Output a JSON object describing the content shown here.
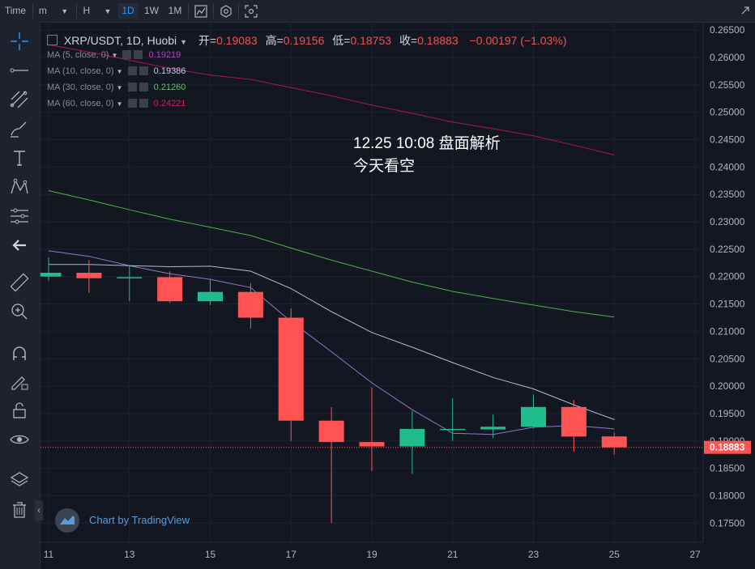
{
  "toolbar": {
    "time_label": "Time",
    "minute_label": "m",
    "hour_label": "H",
    "intervals": [
      "1D",
      "1W",
      "1M"
    ],
    "active_interval": "1D"
  },
  "legend": {
    "symbol": "XRP/USDT, 1D, Huobi",
    "open_label": "开=",
    "open": "0.19083",
    "high_label": "高=",
    "high": "0.19156",
    "low_label": "低=",
    "low": "0.18753",
    "close_label": "收=",
    "close": "0.18883",
    "change": "−0.00197 (−1.03%)"
  },
  "ma_legend": [
    {
      "label": "MA (5, close, 0)",
      "value": "0.19219",
      "color": "#9c27b0"
    },
    {
      "label": "MA (10, close, 0)",
      "value": "0.19386",
      "color": "#c5cae9"
    },
    {
      "label": "MA (30, close, 0)",
      "value": "0.21260",
      "color": "#4caf50"
    },
    {
      "label": "MA (60, close, 0)",
      "value": "0.24221",
      "color": "#e91e63"
    }
  ],
  "annotation": {
    "line1": "12.25 10:08 盘面解析",
    "line2": "今天看空"
  },
  "branding": "Chart by TradingView",
  "chart_data": {
    "type": "candlestick",
    "x_ticks": [
      "11",
      "13",
      "15",
      "17",
      "19",
      "21",
      "23",
      "25",
      "27"
    ],
    "x_range": [
      11,
      27
    ],
    "y_range": [
      0.1715,
      0.2665
    ],
    "y_ticks": [
      "0.17500",
      "0.18000",
      "0.18500",
      "0.19000",
      "0.19500",
      "0.20000",
      "0.20500",
      "0.21000",
      "0.21500",
      "0.22000",
      "0.22500",
      "0.23000",
      "0.23500",
      "0.24000",
      "0.24500",
      "0.25000",
      "0.25500",
      "0.26000",
      "0.26500"
    ],
    "last_price": "0.18883",
    "last_price_value": 0.18883,
    "up_color": "#26a69a",
    "candle_up_color": "#1fbd8c",
    "candle_down_color": "#ff5252",
    "candles": [
      {
        "day": 11,
        "open": 0.22,
        "high": 0.2235,
        "low": 0.2193,
        "close": 0.2207
      },
      {
        "day": 12,
        "open": 0.2207,
        "high": 0.223,
        "low": 0.217,
        "close": 0.2197
      },
      {
        "day": 13,
        "open": 0.2197,
        "high": 0.222,
        "low": 0.2155,
        "close": 0.2199
      },
      {
        "day": 14,
        "open": 0.2199,
        "high": 0.221,
        "low": 0.2152,
        "close": 0.2155
      },
      {
        "day": 15,
        "open": 0.2155,
        "high": 0.2195,
        "low": 0.2148,
        "close": 0.2172
      },
      {
        "day": 16,
        "open": 0.2172,
        "high": 0.2188,
        "low": 0.2105,
        "close": 0.2125
      },
      {
        "day": 17,
        "open": 0.2125,
        "high": 0.2142,
        "low": 0.19,
        "close": 0.1937
      },
      {
        "day": 18,
        "open": 0.1937,
        "high": 0.1962,
        "low": 0.175,
        "close": 0.1898
      },
      {
        "day": 19,
        "open": 0.1898,
        "high": 0.1998,
        "low": 0.1845,
        "close": 0.189
      },
      {
        "day": 20,
        "open": 0.189,
        "high": 0.1955,
        "low": 0.184,
        "close": 0.1922
      },
      {
        "day": 21,
        "open": 0.1922,
        "high": 0.1978,
        "low": 0.19,
        "close": 0.1922
      },
      {
        "day": 22,
        "open": 0.1921,
        "high": 0.1948,
        "low": 0.1905,
        "close": 0.1926
      },
      {
        "day": 23,
        "open": 0.1926,
        "high": 0.1985,
        "low": 0.1923,
        "close": 0.1962
      },
      {
        "day": 24,
        "open": 0.1962,
        "high": 0.1975,
        "low": 0.188,
        "close": 0.1908
      },
      {
        "day": 25,
        "open": 0.19083,
        "high": 0.19156,
        "low": 0.18753,
        "close": 0.18883
      }
    ],
    "series": [
      {
        "name": "MA (5, close, 0)",
        "color": "#9575cd",
        "x": [
          11,
          12,
          13,
          14,
          15,
          16,
          17,
          18,
          19,
          20,
          21,
          22,
          23,
          24,
          25
        ],
        "values": [
          0.2247,
          0.2237,
          0.222,
          0.2205,
          0.2195,
          0.218,
          0.2118,
          0.2063,
          0.2006,
          0.1957,
          0.1914,
          0.1912,
          0.1925,
          0.1928,
          0.1922
        ]
      },
      {
        "name": "MA (10, close, 0)",
        "color": "#b0bec5",
        "x": [
          11,
          12,
          13,
          14,
          15,
          16,
          17,
          18,
          19,
          20,
          21,
          22,
          23,
          24,
          25
        ],
        "values": [
          0.2222,
          0.2222,
          0.222,
          0.2218,
          0.2219,
          0.221,
          0.2178,
          0.2136,
          0.2098,
          0.2071,
          0.2043,
          0.2016,
          0.1995,
          0.1966,
          0.1939
        ]
      },
      {
        "name": "MA (30, close, 0)",
        "color": "#4caf50",
        "x": [
          11,
          12,
          13,
          14,
          15,
          16,
          17,
          18,
          19,
          20,
          21,
          22,
          23,
          24,
          25
        ],
        "values": [
          0.2357,
          0.234,
          0.2322,
          0.2305,
          0.229,
          0.2275,
          0.2252,
          0.223,
          0.221,
          0.219,
          0.2173,
          0.216,
          0.2148,
          0.2136,
          0.2126
        ]
      },
      {
        "name": "MA (60, close, 0)",
        "color": "#ad1457",
        "x": [
          11,
          12,
          13,
          14,
          15,
          16,
          17,
          18,
          19,
          20,
          21,
          22,
          23,
          24,
          25
        ],
        "values": [
          0.2623,
          0.261,
          0.2595,
          0.258,
          0.2568,
          0.256,
          0.2545,
          0.253,
          0.2513,
          0.2498,
          0.2482,
          0.247,
          0.2457,
          0.244,
          0.2422
        ]
      }
    ]
  }
}
